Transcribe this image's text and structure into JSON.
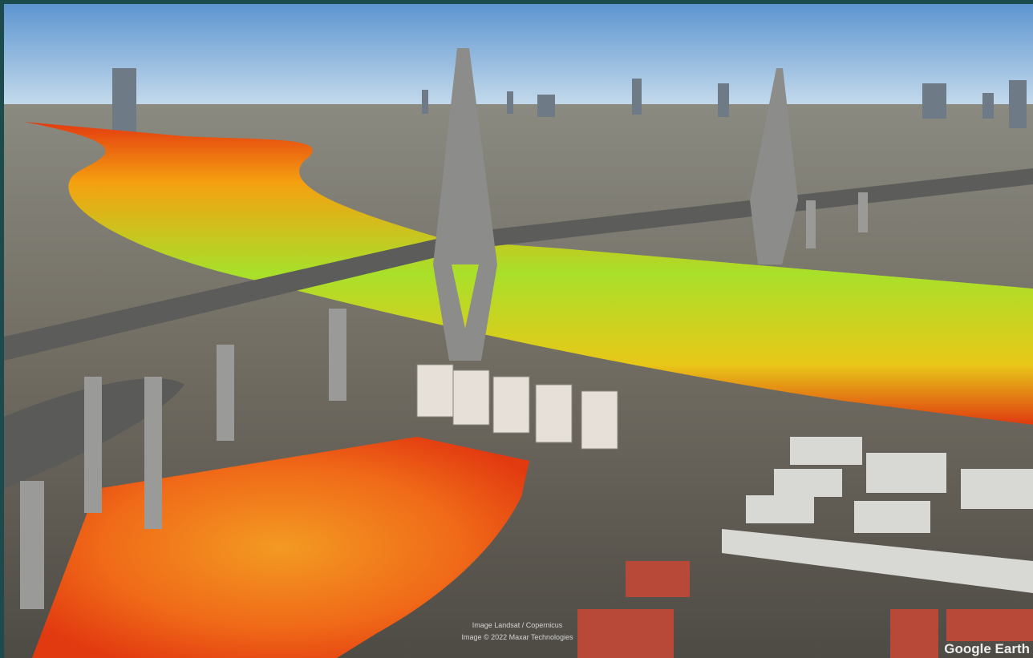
{
  "attribution": {
    "lines": [
      "Image Landsat / Copernicus",
      "Image © 2022 Maxar Technologies"
    ]
  },
  "watermark": "Google Earth"
}
